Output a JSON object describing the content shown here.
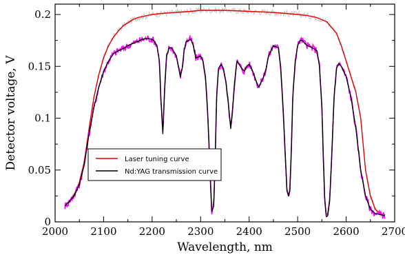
{
  "chart_data": {
    "type": "line",
    "title": "",
    "xlabel": "Wavelength, nm",
    "ylabel": "Detector voltage, V",
    "xlim": [
      2000,
      2700
    ],
    "ylim": [
      0,
      0.21
    ],
    "x_ticks": [
      2000,
      2100,
      2200,
      2300,
      2400,
      2500,
      2600,
      2700
    ],
    "x_tick_labels": [
      "2000",
      "2100",
      "2200",
      "2300",
      "2400",
      "2500",
      "2600",
      "2700"
    ],
    "y_ticks": [
      0,
      0.05,
      0.1,
      0.15,
      0.2
    ],
    "y_tick_labels": [
      "0",
      "0.05",
      "0.1",
      "0.15",
      "0.2"
    ],
    "grid": false,
    "legend_position": "lower-left",
    "series": [
      {
        "name": "Laser tuning curve",
        "color": "#e00000",
        "noise_color": "#c8c8c8",
        "x": [
          2020,
          2030,
          2040,
          2050,
          2060,
          2070,
          2080,
          2090,
          2100,
          2110,
          2120,
          2130,
          2140,
          2150,
          2160,
          2170,
          2180,
          2200,
          2220,
          2250,
          2280,
          2300,
          2350,
          2400,
          2450,
          2500,
          2520,
          2540,
          2560,
          2580,
          2590,
          2600,
          2610,
          2620,
          2630,
          2640,
          2650,
          2660,
          2670,
          2680
        ],
        "y": [
          0.016,
          0.02,
          0.027,
          0.038,
          0.058,
          0.09,
          0.12,
          0.142,
          0.158,
          0.17,
          0.178,
          0.184,
          0.189,
          0.192,
          0.195,
          0.197,
          0.198,
          0.2,
          0.201,
          0.202,
          0.203,
          0.204,
          0.204,
          0.203,
          0.202,
          0.2,
          0.199,
          0.197,
          0.193,
          0.182,
          0.17,
          0.155,
          0.14,
          0.125,
          0.1,
          0.05,
          0.025,
          0.012,
          0.008,
          0.007
        ]
      },
      {
        "name": "Nd:YAG transmission curve",
        "color": "#000000",
        "noise_color": "#ff00ff",
        "x": [
          2020,
          2030,
          2040,
          2050,
          2060,
          2070,
          2080,
          2090,
          2100,
          2110,
          2120,
          2130,
          2140,
          2150,
          2160,
          2170,
          2180,
          2190,
          2200,
          2205,
          2210,
          2215,
          2218,
          2222,
          2226,
          2230,
          2235,
          2240,
          2250,
          2255,
          2258,
          2262,
          2266,
          2270,
          2280,
          2285,
          2290,
          2300,
          2305,
          2310,
          2315,
          2320,
          2323,
          2327,
          2330,
          2333,
          2337,
          2342,
          2347,
          2352,
          2357,
          2362,
          2366,
          2370,
          2375,
          2382,
          2390,
          2395,
          2400,
          2405,
          2410,
          2415,
          2420,
          2425,
          2430,
          2435,
          2440,
          2450,
          2460,
          2465,
          2470,
          2475,
          2478,
          2481,
          2484,
          2487,
          2490,
          2495,
          2500,
          2505,
          2510,
          2515,
          2520,
          2530,
          2540,
          2545,
          2550,
          2553,
          2556,
          2559,
          2562,
          2566,
          2570,
          2575,
          2580,
          2585,
          2590,
          2600,
          2610,
          2620,
          2630,
          2640,
          2650,
          2660,
          2670,
          2680
        ],
        "y": [
          0.015,
          0.02,
          0.026,
          0.036,
          0.055,
          0.085,
          0.11,
          0.13,
          0.145,
          0.155,
          0.162,
          0.165,
          0.167,
          0.17,
          0.172,
          0.174,
          0.176,
          0.177,
          0.176,
          0.174,
          0.17,
          0.155,
          0.12,
          0.085,
          0.13,
          0.16,
          0.168,
          0.168,
          0.16,
          0.148,
          0.14,
          0.148,
          0.165,
          0.174,
          0.176,
          0.17,
          0.158,
          0.16,
          0.155,
          0.14,
          0.1,
          0.04,
          0.01,
          0.015,
          0.06,
          0.12,
          0.148,
          0.152,
          0.148,
          0.135,
          0.115,
          0.09,
          0.11,
          0.135,
          0.155,
          0.15,
          0.145,
          0.15,
          0.152,
          0.148,
          0.142,
          0.135,
          0.13,
          0.135,
          0.14,
          0.148,
          0.16,
          0.17,
          0.168,
          0.15,
          0.11,
          0.06,
          0.03,
          0.025,
          0.03,
          0.07,
          0.12,
          0.155,
          0.17,
          0.175,
          0.175,
          0.172,
          0.17,
          0.168,
          0.165,
          0.15,
          0.11,
          0.06,
          0.02,
          0.005,
          0.006,
          0.02,
          0.06,
          0.12,
          0.148,
          0.153,
          0.15,
          0.14,
          0.12,
          0.09,
          0.05,
          0.025,
          0.012,
          0.008,
          0.007,
          0.006
        ]
      }
    ]
  }
}
